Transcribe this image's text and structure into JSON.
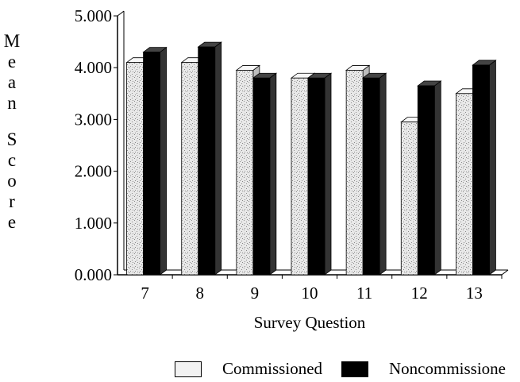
{
  "chart_data": {
    "type": "bar",
    "categories": [
      "7",
      "8",
      "9",
      "10",
      "11",
      "12",
      "13"
    ],
    "series": [
      {
        "name": "Commissioned",
        "values": [
          4.1,
          4.1,
          3.95,
          3.8,
          3.95,
          2.95,
          3.5
        ]
      },
      {
        "name": "Noncommissione",
        "values": [
          4.3,
          4.4,
          3.8,
          3.8,
          3.8,
          3.65,
          4.05
        ]
      }
    ],
    "xlabel": "Survey Question",
    "ylabel": "Mean Score",
    "ylabel_letters": [
      "M",
      "e",
      "a",
      "n",
      "S",
      "c",
      "o",
      "r",
      "e"
    ],
    "ylim": [
      0,
      5
    ],
    "yticks": [
      "0.000",
      "1.000",
      "2.000",
      "3.000",
      "4.000",
      "5.000"
    ],
    "legend_position": "bottom",
    "grid": false,
    "colors": {
      "commissioned": "#e8e8e8",
      "noncommissioned": "#000000",
      "axis": "#000000"
    }
  }
}
